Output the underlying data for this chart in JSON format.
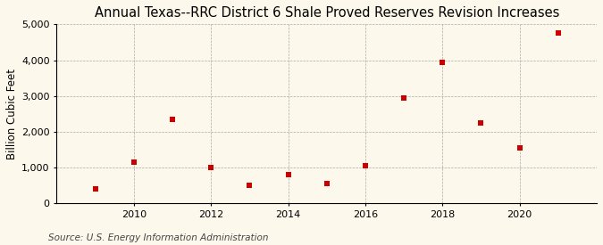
{
  "title": "Annual Texas--RRC District 6 Shale Proved Reserves Revision Increases",
  "ylabel": "Billion Cubic Feet",
  "source": "Source: U.S. Energy Information Administration",
  "years": [
    2009,
    2010,
    2011,
    2012,
    2013,
    2014,
    2015,
    2016,
    2017,
    2018,
    2019,
    2020,
    2021
  ],
  "values": [
    400,
    1150,
    2350,
    1000,
    500,
    800,
    550,
    1050,
    2950,
    3950,
    2250,
    1550,
    4750
  ],
  "marker_color": "#cc0000",
  "marker": "s",
  "marker_size": 4,
  "background_color": "#fdf8ec",
  "grid_color": "#aaaaaa",
  "xlim": [
    2008.0,
    2022.0
  ],
  "ylim": [
    0,
    5000
  ],
  "yticks": [
    0,
    1000,
    2000,
    3000,
    4000,
    5000
  ],
  "xticks": [
    2010,
    2012,
    2014,
    2016,
    2018,
    2020
  ],
  "title_fontsize": 10.5,
  "label_fontsize": 8.5,
  "tick_fontsize": 8,
  "source_fontsize": 7.5
}
